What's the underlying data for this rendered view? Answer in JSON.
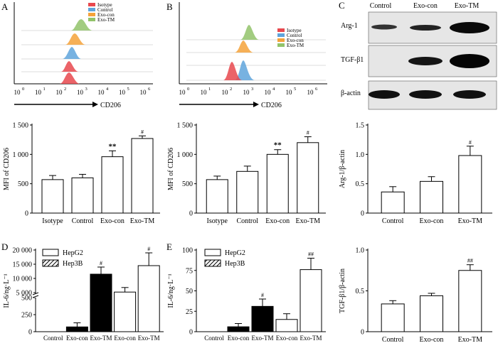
{
  "panel_labels": {
    "A": "A",
    "B": "B",
    "C": "C",
    "D": "D",
    "E": "E"
  },
  "flow": {
    "A": {
      "xlabel": "CD206",
      "legend": [
        "Isotype",
        "Control",
        "Exo-con",
        "Exo-TM"
      ]
    },
    "B": {
      "xlabel": "CD206",
      "legend": [
        "Isotype",
        "Control",
        "Exo-con",
        "Exo-TM"
      ]
    },
    "tick_labels": [
      "10",
      "10",
      "10",
      "10",
      "10",
      "10",
      "10"
    ],
    "tick_exponents": [
      "0",
      "1",
      "2",
      "3",
      "4",
      "5",
      "6"
    ],
    "colors": {
      "Isotype": "#e8484e",
      "Control": "#5fa4dc",
      "Exo-con": "#f4a23a",
      "Exo-TM": "#92c36a"
    }
  },
  "western": {
    "columns": [
      "Control",
      "Exo-con",
      "Exo-TM"
    ],
    "rows": [
      "Arg-1",
      "TGF-β1",
      "β-actin"
    ]
  },
  "chart_data": [
    {
      "id": "A-mfi",
      "type": "bar",
      "categories": [
        "Isotype",
        "Control",
        "Exo-con",
        "Exo-TM"
      ],
      "values": [
        570,
        600,
        960,
        1270
      ],
      "errors": [
        70,
        60,
        100,
        45
      ],
      "ylim": [
        0,
        1500
      ],
      "yticks": [
        "0",
        "500",
        "1 000",
        "1 500"
      ],
      "ylabel": "MFI of CD206",
      "annotations": [
        "",
        "",
        "**",
        "#"
      ]
    },
    {
      "id": "B-mfi",
      "type": "bar",
      "categories": [
        "Isotype",
        "Control",
        "Exo-con",
        "Exo-TM"
      ],
      "values": [
        570,
        710,
        1000,
        1200
      ],
      "errors": [
        60,
        90,
        80,
        100
      ],
      "ylim": [
        0,
        1500
      ],
      "yticks": [
        "0",
        "500",
        "1 000",
        "1 500"
      ],
      "ylabel": "MFI of CD206",
      "annotations": [
        "",
        "",
        "**",
        "#"
      ]
    },
    {
      "id": "C-arg",
      "type": "bar",
      "categories": [
        "Control",
        "Exo-con",
        "Exo-TM"
      ],
      "values": [
        0.36,
        0.54,
        0.98
      ],
      "errors": [
        0.09,
        0.08,
        0.16
      ],
      "ylim": [
        0,
        1.5
      ],
      "yticks": [
        "0",
        "0.5",
        "1.0",
        "1.5"
      ],
      "ylabel": "Arg-1/β-actin",
      "annotations": [
        "",
        "",
        "#"
      ]
    },
    {
      "id": "C-tgf",
      "type": "bar",
      "categories": [
        "Control",
        "Exo-con",
        "Exo-TM"
      ],
      "values": [
        0.34,
        0.44,
        0.75
      ],
      "errors": [
        0.04,
        0.03,
        0.07
      ],
      "ylim": [
        0,
        1.0
      ],
      "yticks": [
        "0",
        "0.5",
        "1.0"
      ],
      "ylabel": "TGF-β1/β-actin",
      "annotations": [
        "",
        "",
        "##"
      ]
    },
    {
      "id": "D-il6",
      "type": "bar",
      "categories": [
        "Control",
        "Exo-con",
        "Exo-TM",
        "Exo-con",
        "Exo-TM"
      ],
      "legend": [
        "HepG2",
        "Hep3B"
      ],
      "series_of_bar": [
        "HepG2",
        "Hep3B",
        "Hep3B",
        "HepG2",
        "HepG2"
      ],
      "values": [
        0,
        70,
        11500,
        5200,
        14500
      ],
      "errors": [
        0,
        60,
        2500,
        1600,
        4500
      ],
      "yticks": [
        "0",
        "250",
        "500",
        "5 000",
        "10 000",
        "15 000",
        "20 000"
      ],
      "ylabel": "IL-6/ng·L⁻¹",
      "annotations": [
        "",
        "",
        "#",
        "",
        "#"
      ]
    },
    {
      "id": "E-il6",
      "type": "bar",
      "categories": [
        "Control",
        "Exo-con",
        "Exo-TM",
        "Exo-con",
        "Exo-TM"
      ],
      "legend": [
        "HepG2",
        "Hep3B"
      ],
      "series_of_bar": [
        "HepG2",
        "Hep3B",
        "Hep3B",
        "HepG2",
        "HepG2"
      ],
      "values": [
        0,
        6,
        31,
        15,
        76
      ],
      "errors": [
        0,
        4,
        9,
        7,
        14
      ],
      "ylim": [
        0,
        100
      ],
      "yticks": [
        "0",
        "25",
        "50",
        "75",
        "100"
      ],
      "ylabel": "IL-6/ng·L⁻¹",
      "annotations": [
        "",
        "",
        "#",
        "",
        "##"
      ]
    }
  ]
}
